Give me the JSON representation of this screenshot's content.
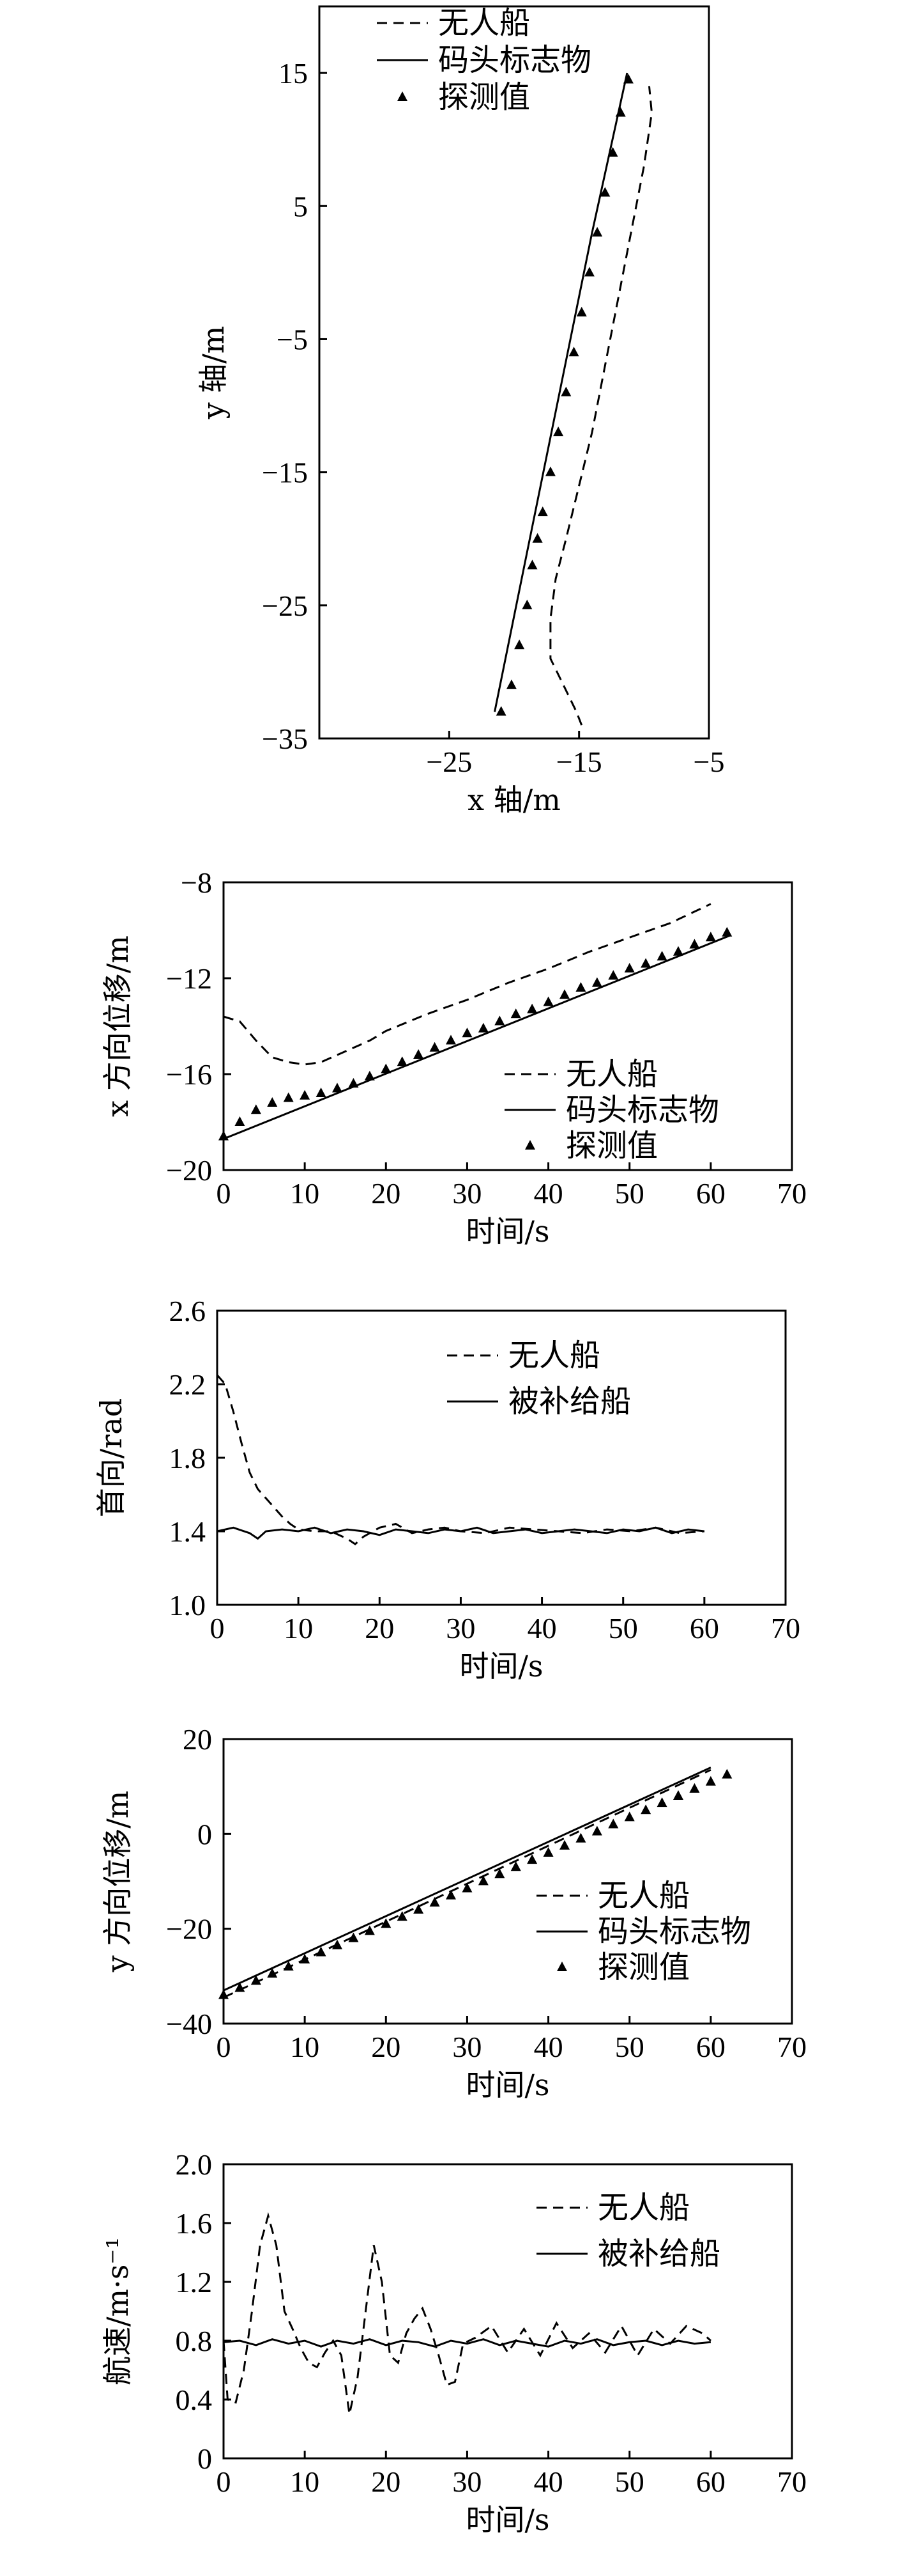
{
  "chart_data": [
    {
      "type": "line",
      "xlabel": "x 轴/m",
      "ylabel": "y 轴/m",
      "xlim": [
        -35,
        -5
      ],
      "ylim": [
        -35,
        20
      ],
      "xticks": [
        -25,
        -15,
        -5
      ],
      "yticks": [
        15,
        5,
        -5,
        -15,
        -25,
        -35
      ],
      "tick_labels_x": [
        "−25",
        "−15",
        "−5"
      ],
      "tick_labels_y": [
        "15",
        "5",
        "−5",
        "−15",
        "−25",
        "−35"
      ],
      "legend": {
        "position": "top-left",
        "entries": [
          "无人船",
          "码头标志物",
          "探测值"
        ]
      },
      "series": [
        {
          "name": "无人船",
          "style": "dashed",
          "x": [
            -14.8,
            -15.2,
            -16.2,
            -17.2,
            -17.2,
            -16.8,
            -16.0,
            -15.0,
            -14.0,
            -13.0,
            -12.0,
            -11.0,
            -10.0,
            -9.4,
            -9.6
          ],
          "y": [
            -34,
            -33,
            -31,
            -29,
            -26,
            -23,
            -20,
            -16,
            -12,
            -7,
            -2,
            3,
            8,
            12,
            14
          ]
        },
        {
          "name": "码头标志物",
          "style": "solid",
          "x": [
            -21.5,
            -19,
            -16.5,
            -14,
            -11.3
          ],
          "y": [
            -33,
            -21,
            -9,
            3,
            15
          ]
        },
        {
          "name": "探测值",
          "style": "markers",
          "x": [
            -21.0,
            -20.2,
            -19.6,
            -19.0,
            -18.6,
            -18.2,
            -17.8,
            -17.2,
            -16.6,
            -16.0,
            -15.4,
            -14.8,
            -14.2,
            -13.6,
            -13.0,
            -12.4,
            -11.8,
            -11.2
          ],
          "y": [
            -33,
            -31,
            -28,
            -25,
            -22,
            -20,
            -18,
            -15,
            -12,
            -9,
            -6,
            -3,
            0,
            3,
            6,
            9,
            12,
            14.5
          ]
        }
      ]
    },
    {
      "type": "line",
      "xlabel": "时间/s",
      "ylabel": "x 方向位移/m",
      "xlim": [
        0,
        70
      ],
      "ylim": [
        -20,
        -8
      ],
      "xticks": [
        0,
        10,
        20,
        30,
        40,
        50,
        60,
        70
      ],
      "yticks": [
        -8,
        -12,
        -16,
        -20
      ],
      "tick_labels_x": [
        "0",
        "10",
        "20",
        "30",
        "40",
        "50",
        "60",
        "70"
      ],
      "tick_labels_y": [
        "−8",
        "−12",
        "−16",
        "−20"
      ],
      "legend": {
        "position": "bottom-right",
        "entries": [
          "无人船",
          "码头标志物",
          "探测值"
        ]
      },
      "series": [
        {
          "name": "无人船",
          "style": "dashed",
          "x": [
            0,
            2,
            4,
            6,
            8,
            10,
            12,
            14,
            16,
            18,
            20,
            25,
            30,
            35,
            40,
            45,
            50,
            55,
            60
          ],
          "y": [
            -13.6,
            -13.8,
            -14.6,
            -15.3,
            -15.5,
            -15.6,
            -15.5,
            -15.2,
            -14.9,
            -14.6,
            -14.2,
            -13.5,
            -12.9,
            -12.2,
            -11.6,
            -10.9,
            -10.3,
            -9.7,
            -8.9
          ]
        },
        {
          "name": "码头标志物",
          "style": "solid",
          "x": [
            0,
            62.5
          ],
          "y": [
            -18.7,
            -10.2
          ]
        },
        {
          "name": "探测值",
          "style": "markers",
          "x": [
            0,
            2,
            4,
            6,
            8,
            10,
            12,
            14,
            16,
            18,
            20,
            22,
            24,
            26,
            28,
            30,
            32,
            34,
            36,
            38,
            40,
            42,
            44,
            46,
            48,
            50,
            52,
            54,
            56,
            58,
            60,
            62
          ],
          "y": [
            -18.6,
            -18.0,
            -17.5,
            -17.2,
            -17.0,
            -16.9,
            -16.8,
            -16.6,
            -16.4,
            -16.1,
            -15.8,
            -15.5,
            -15.2,
            -14.9,
            -14.6,
            -14.3,
            -14.1,
            -13.8,
            -13.5,
            -13.3,
            -13.0,
            -12.7,
            -12.4,
            -12.2,
            -11.9,
            -11.6,
            -11.4,
            -11.1,
            -10.9,
            -10.6,
            -10.3,
            -10.1
          ]
        }
      ]
    },
    {
      "type": "line",
      "xlabel": "时间/s",
      "ylabel": "首向/rad",
      "xlim": [
        0,
        70
      ],
      "ylim": [
        1.0,
        2.6
      ],
      "xticks": [
        0,
        10,
        20,
        30,
        40,
        50,
        60,
        70
      ],
      "yticks": [
        2.6,
        2.2,
        1.8,
        1.4,
        1.0
      ],
      "tick_labels_x": [
        "0",
        "10",
        "20",
        "30",
        "40",
        "50",
        "60",
        "70"
      ],
      "tick_labels_y": [
        "2.6",
        "2.2",
        "1.8",
        "1.4",
        "1.0"
      ],
      "legend": {
        "position": "top-right",
        "entries": [
          "无人船",
          "被补给船"
        ]
      },
      "series": [
        {
          "name": "无人船",
          "style": "dashed",
          "x": [
            0,
            1,
            2,
            3,
            4,
            5,
            6,
            7,
            8,
            9,
            10,
            12,
            14,
            16,
            17,
            18,
            20,
            22,
            24,
            26,
            28,
            30,
            33,
            36,
            39,
            42,
            45,
            48,
            51,
            54,
            57,
            60
          ],
          "y": [
            2.25,
            2.2,
            2.05,
            1.88,
            1.72,
            1.63,
            1.58,
            1.53,
            1.48,
            1.44,
            1.41,
            1.4,
            1.4,
            1.36,
            1.33,
            1.37,
            1.42,
            1.44,
            1.39,
            1.41,
            1.42,
            1.4,
            1.39,
            1.42,
            1.41,
            1.4,
            1.39,
            1.41,
            1.4,
            1.42,
            1.39,
            1.4
          ]
        },
        {
          "name": "被补给船",
          "style": "solid",
          "x": [
            0,
            2,
            4,
            5,
            6,
            8,
            10,
            12,
            14,
            16,
            18,
            20,
            22,
            24,
            26,
            28,
            30,
            32,
            34,
            36,
            38,
            40,
            42,
            44,
            46,
            48,
            50,
            52,
            54,
            56,
            58,
            60
          ],
          "y": [
            1.4,
            1.42,
            1.39,
            1.36,
            1.4,
            1.41,
            1.4,
            1.42,
            1.39,
            1.41,
            1.4,
            1.38,
            1.41,
            1.4,
            1.39,
            1.41,
            1.4,
            1.42,
            1.39,
            1.4,
            1.41,
            1.39,
            1.4,
            1.41,
            1.4,
            1.39,
            1.41,
            1.4,
            1.42,
            1.39,
            1.41,
            1.4
          ]
        }
      ]
    },
    {
      "type": "line",
      "xlabel": "时间/s",
      "ylabel": "y 方向位移/m",
      "xlim": [
        0,
        70
      ],
      "ylim": [
        -40,
        20
      ],
      "xticks": [
        0,
        10,
        20,
        30,
        40,
        50,
        60,
        70
      ],
      "yticks": [
        20,
        0,
        -20,
        -40
      ],
      "tick_labels_x": [
        "0",
        "10",
        "20",
        "30",
        "40",
        "50",
        "60",
        "70"
      ],
      "tick_labels_y": [
        "20",
        "0",
        "−20",
        "−40"
      ],
      "legend": {
        "position": "bottom-right",
        "entries": [
          "无人船",
          "码头标志物",
          "探测值"
        ]
      },
      "series": [
        {
          "name": "无人船",
          "style": "dashed",
          "x": [
            0,
            5,
            10,
            15,
            20,
            25,
            30,
            35,
            40,
            45,
            50,
            55,
            60
          ],
          "y": [
            -34.5,
            -30.5,
            -26.5,
            -22.5,
            -18.5,
            -14.5,
            -10.5,
            -6.5,
            -2.5,
            1.5,
            5.5,
            9.5,
            13.5
          ]
        },
        {
          "name": "码头标志物",
          "style": "solid",
          "x": [
            0,
            60
          ],
          "y": [
            -33,
            14
          ]
        },
        {
          "name": "探测值",
          "style": "markers",
          "x": [
            0,
            2,
            4,
            6,
            8,
            10,
            12,
            14,
            16,
            18,
            20,
            22,
            24,
            26,
            28,
            30,
            32,
            34,
            36,
            38,
            40,
            42,
            44,
            46,
            48,
            50,
            52,
            54,
            56,
            58,
            60,
            62
          ],
          "y": [
            -34,
            -32.5,
            -31,
            -29.5,
            -28,
            -26.5,
            -25,
            -23.5,
            -22,
            -20.5,
            -19,
            -17.5,
            -16,
            -14.5,
            -13,
            -11.5,
            -10,
            -8.5,
            -7,
            -5.5,
            -4,
            -2.5,
            -1,
            0.5,
            2,
            3.5,
            5,
            6.5,
            8,
            9.5,
            11,
            12.5
          ]
        }
      ]
    },
    {
      "type": "line",
      "xlabel": "时间/s",
      "ylabel": "航速/m·s⁻¹",
      "xlim": [
        0,
        70
      ],
      "ylim": [
        0,
        2.0
      ],
      "xticks": [
        0,
        10,
        20,
        30,
        40,
        50,
        60,
        70
      ],
      "yticks": [
        2.0,
        1.6,
        1.2,
        0.8,
        0.4,
        0
      ],
      "tick_labels_x": [
        "0",
        "10",
        "20",
        "30",
        "40",
        "50",
        "60",
        "70"
      ],
      "tick_labels_y": [
        "2.0",
        "1.6",
        "1.2",
        "0.8",
        "0.4",
        "0"
      ],
      "legend": {
        "position": "top-right",
        "entries": [
          "无人船",
          "被补给船"
        ]
      },
      "series": [
        {
          "name": "无人船",
          "style": "dashed",
          "x": [
            0,
            0.5,
            1.5,
            2.5,
            3.5,
            4.5,
            5.5,
            6.5,
            7.5,
            8.5,
            9.5,
            10.5,
            11.5,
            12.5,
            13.5,
            14.5,
            15.5,
            16.5,
            17.5,
            18.5,
            19.5,
            20.5,
            21.5,
            22.5,
            23.5,
            24.5,
            25.5,
            26.5,
            27.5,
            28.5,
            29.5,
            31,
            33,
            35,
            37,
            39,
            41,
            43,
            45,
            47,
            49,
            51,
            53,
            55,
            57,
            59,
            60
          ],
          "y": [
            0.8,
            0.4,
            0.38,
            0.6,
            1.0,
            1.45,
            1.65,
            1.45,
            1.0,
            0.88,
            0.75,
            0.65,
            0.62,
            0.72,
            0.8,
            0.7,
            0.3,
            0.55,
            1.0,
            1.45,
            1.2,
            0.7,
            0.65,
            0.85,
            0.95,
            1.02,
            0.88,
            0.7,
            0.5,
            0.52,
            0.78,
            0.82,
            0.9,
            0.72,
            0.88,
            0.7,
            0.92,
            0.75,
            0.85,
            0.72,
            0.9,
            0.7,
            0.88,
            0.78,
            0.9,
            0.85,
            0.8
          ]
        },
        {
          "name": "被补给船",
          "style": "solid",
          "x": [
            0,
            2,
            4,
            6,
            8,
            10,
            12,
            14,
            16,
            18,
            20,
            22,
            24,
            26,
            28,
            30,
            32,
            34,
            36,
            38,
            40,
            42,
            44,
            46,
            48,
            50,
            52,
            54,
            56,
            58,
            60
          ],
          "y": [
            0.79,
            0.8,
            0.77,
            0.81,
            0.78,
            0.8,
            0.76,
            0.8,
            0.78,
            0.81,
            0.77,
            0.8,
            0.79,
            0.76,
            0.8,
            0.78,
            0.81,
            0.77,
            0.8,
            0.78,
            0.76,
            0.8,
            0.78,
            0.81,
            0.77,
            0.79,
            0.8,
            0.77,
            0.8,
            0.78,
            0.79
          ]
        }
      ]
    }
  ]
}
